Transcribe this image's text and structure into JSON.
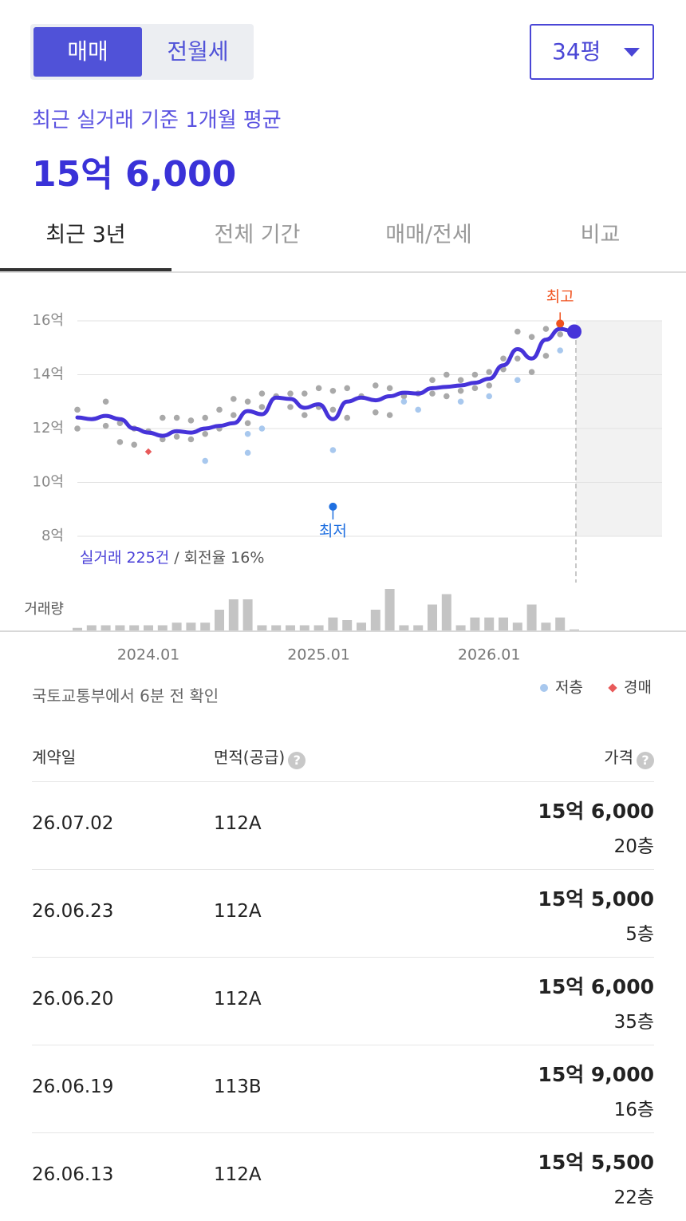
{
  "header": {
    "toggle": [
      "매매",
      "전월세"
    ],
    "size": "34평",
    "subtitle": "최근 실거래 기준 1개월 평균",
    "price": "15억 6,000"
  },
  "tabs": [
    "최근 3년",
    "전체 기간",
    "매매/전세",
    "비교"
  ],
  "chart_data": {
    "type": "line",
    "x": [
      "2023.08",
      "2023.09",
      "2023.10",
      "2023.11",
      "2023.12",
      "2024.01",
      "2024.02",
      "2024.03",
      "2024.04",
      "2024.05",
      "2024.06",
      "2024.07",
      "2024.08",
      "2024.09",
      "2024.10",
      "2024.11",
      "2024.12",
      "2025.01",
      "2025.02",
      "2025.03",
      "2025.04",
      "2025.05",
      "2025.06",
      "2025.07",
      "2025.08",
      "2025.09",
      "2025.10",
      "2025.11",
      "2025.12",
      "2026.01",
      "2026.02",
      "2026.03",
      "2026.04",
      "2026.05",
      "2026.06",
      "2026.07"
    ],
    "series": [
      {
        "color": "#4633d9",
        "values": [
          12.41,
          12.35,
          12.47,
          12.35,
          12.0,
          11.85,
          11.73,
          11.9,
          11.85,
          12.0,
          12.1,
          12.2,
          12.65,
          12.53,
          13.15,
          13.1,
          12.77,
          12.9,
          12.35,
          13.0,
          13.15,
          13.05,
          13.2,
          13.33,
          13.3,
          13.5,
          13.55,
          13.6,
          13.7,
          13.85,
          14.35,
          14.95,
          14.6,
          15.3,
          15.7,
          15.6
        ]
      }
    ],
    "scatter": [
      {
        "color": "#a9a9a9",
        "x": [
          "2023.08",
          "2023.08",
          "2023.10",
          "2023.10",
          "2023.11",
          "2023.11",
          "2023.12",
          "2023.12",
          "2024.01",
          "2024.02",
          "2024.02",
          "2024.03",
          "2024.03",
          "2024.04",
          "2024.04",
          "2024.05",
          "2024.05",
          "2024.06",
          "2024.06",
          "2024.07",
          "2024.07",
          "2024.08",
          "2024.08",
          "2024.09",
          "2024.09",
          "2024.10",
          "2024.11",
          "2024.11",
          "2024.12",
          "2024.12",
          "2025.01",
          "2025.01",
          "2025.02",
          "2025.02",
          "2025.03",
          "2025.03",
          "2025.04",
          "2025.05",
          "2025.05",
          "2025.06",
          "2025.06",
          "2025.07",
          "2025.08",
          "2025.09",
          "2025.09",
          "2025.10",
          "2025.10",
          "2025.11",
          "2025.11",
          "2025.12",
          "2025.12",
          "2026.01",
          "2026.01",
          "2026.02",
          "2026.02",
          "2026.03",
          "2026.03",
          "2026.04",
          "2026.04",
          "2026.05",
          "2026.05",
          "2026.06",
          "2026.06"
        ],
        "values": [
          12.7,
          12.0,
          13.0,
          12.1,
          12.2,
          11.5,
          12.0,
          11.4,
          11.9,
          12.4,
          11.6,
          12.4,
          11.7,
          12.3,
          11.6,
          12.4,
          11.8,
          12.7,
          12.0,
          13.1,
          12.5,
          13.0,
          12.2,
          13.3,
          12.8,
          13.2,
          13.3,
          12.8,
          13.3,
          12.5,
          13.5,
          12.8,
          13.4,
          12.7,
          13.5,
          12.4,
          13.2,
          13.6,
          12.6,
          13.5,
          12.5,
          13.2,
          13.3,
          13.8,
          13.3,
          14.0,
          13.2,
          13.8,
          13.4,
          14.0,
          13.5,
          14.1,
          13.6,
          14.6,
          14.2,
          15.6,
          14.6,
          15.4,
          14.1,
          15.7,
          14.7,
          15.8,
          15.5
        ]
      },
      {
        "name": "저층",
        "color": "#a8c8ee",
        "x": [
          "2024.05",
          "2024.08",
          "2024.08",
          "2024.09",
          "2025.02",
          "2025.07",
          "2025.08",
          "2025.11",
          "2026.01",
          "2026.03",
          "2026.06"
        ],
        "values": [
          10.8,
          11.1,
          11.8,
          12.0,
          11.2,
          13.0,
          12.7,
          13.0,
          13.2,
          13.8,
          14.9
        ]
      },
      {
        "name": "경매",
        "color": "#e85a5a",
        "marker": "diamond",
        "x": [
          "2024.01"
        ],
        "values": [
          11.14
        ]
      }
    ],
    "annotations": [
      {
        "label": "최고",
        "x": "2026.06",
        "value": 15.9,
        "color": "#f0521e"
      },
      {
        "label": "최저",
        "x": "2025.02",
        "value": 9.1,
        "color": "#1f6fe0"
      }
    ],
    "summary": {
      "count": "실거래 225건",
      "rate": "/ 회전율 16%"
    },
    "volume": {
      "label": "거래량",
      "color": "#c4c4c4",
      "values": [
        1,
        2,
        2,
        2,
        2,
        2,
        2,
        3,
        3,
        3,
        8,
        12,
        12,
        2,
        2,
        2,
        2,
        2,
        5,
        4,
        3,
        8,
        16,
        2,
        2,
        10,
        14,
        2,
        5,
        5,
        5,
        3,
        10,
        3,
        5,
        0.4
      ]
    },
    "ylim": [
      8,
      16
    ],
    "yticks": [
      {
        "value": 8,
        "label": "8억"
      },
      {
        "value": 10,
        "label": "10억"
      },
      {
        "value": 12,
        "label": "12억"
      },
      {
        "value": 14,
        "label": "14억"
      },
      {
        "value": 16,
        "label": "16억"
      }
    ],
    "xticks": [
      "2024.01",
      "2025.01",
      "2026.01"
    ],
    "grid": true
  },
  "source": "국토교통부에서 6분 전 확인",
  "table": {
    "headers": [
      "계약일",
      "면적(공급)",
      "가격"
    ],
    "rows": [
      [
        "26.07.02",
        "112A",
        "15억 6,000",
        "20층"
      ],
      [
        "26.06.23",
        "112A",
        "15억 5,000",
        "5층"
      ],
      [
        "26.06.20",
        "112A",
        "15억 6,000",
        "35층"
      ],
      [
        "26.06.19",
        "113B",
        "15억 9,000",
        "16층"
      ],
      [
        "26.06.13",
        "112A",
        "15억 5,500",
        "22층"
      ]
    ]
  }
}
